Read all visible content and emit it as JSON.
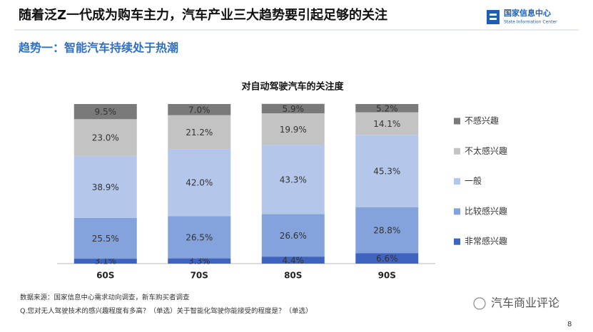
{
  "header": {
    "title": "随着泛Z一代成为购车主力，汽车产业三大趋势要引起足够的关注",
    "subtitle": "趋势一：智能汽车持续处于热潮",
    "logo_cn": "国家信息中心",
    "logo_en": "State Information Center"
  },
  "chart_data": {
    "type": "stacked_bar",
    "title": "对自动驾驶汽车的关注度",
    "categories": [
      "60S",
      "70S",
      "80S",
      "90S"
    ],
    "ylim": [
      0,
      100
    ],
    "legend": "right",
    "series": [
      {
        "name": "非常感兴趣",
        "color": "#3f64c0",
        "values": [
          3.1,
          3.3,
          4.4,
          6.6
        ],
        "value_labels": [
          "3.1%",
          "3.3%",
          "4.4%",
          "6.6%"
        ]
      },
      {
        "name": "比较感兴趣",
        "color": "#84a2db",
        "values": [
          25.5,
          26.5,
          26.6,
          28.8
        ],
        "value_labels": [
          "25.5%",
          "26.5%",
          "26.6%",
          "28.8%"
        ]
      },
      {
        "name": "一般",
        "color": "#b4c7ea",
        "values": [
          38.9,
          42.0,
          43.3,
          45.3
        ],
        "value_labels": [
          "38.9%",
          "42.0%",
          "43.3%",
          "45.3%"
        ]
      },
      {
        "name": "不太感兴趣",
        "color": "#c3c3c3",
        "values": [
          23.0,
          21.2,
          19.9,
          14.1
        ],
        "value_labels": [
          "23.0%",
          "21.2%",
          "19.9%",
          "14.1%"
        ]
      },
      {
        "name": "不感兴趣",
        "color": "#7a7a7a",
        "values": [
          9.5,
          7.0,
          5.9,
          5.2
        ],
        "value_labels": [
          "9.5%",
          "7.0%",
          "5.9%",
          "5.2%"
        ]
      }
    ]
  },
  "footer": {
    "source": "数据来源：国家信息中心需求动向调查，新车购买者调查",
    "question": "Q.您对无人驾驶技术的感兴趣程度有多高？（单选）关于智能化驾驶你能接受的程度是？（单选）",
    "watermark": "汽车商业评论",
    "page": "8"
  }
}
